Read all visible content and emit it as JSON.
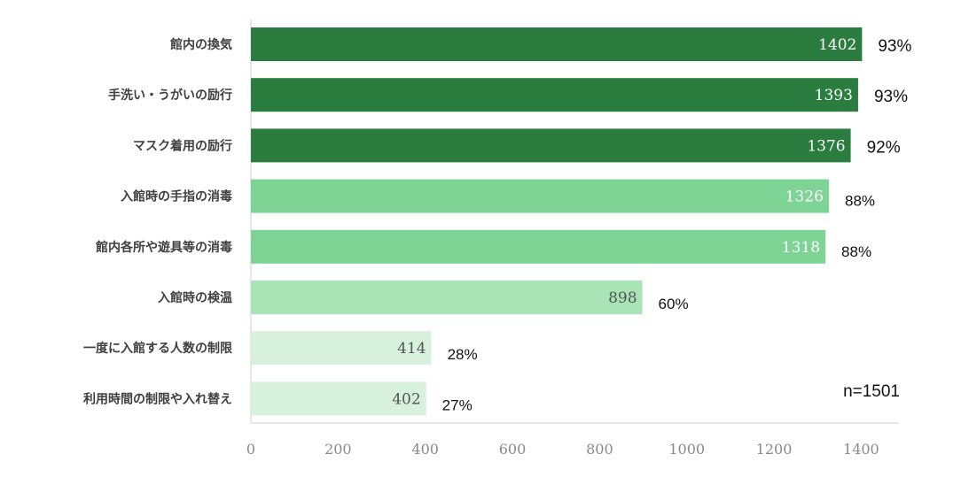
{
  "chart_data": {
    "type": "bar",
    "orientation": "horizontal",
    "categories": [
      "館内の換気",
      "手洗い・うがいの励行",
      "マスク着用の励行",
      "入館時の手指の消毒",
      "館内各所や遊具等の消毒",
      "入館時の検温",
      "一度に入館する人数の制限",
      "利用時間の制限や入れ替え"
    ],
    "values": [
      1402,
      1393,
      1376,
      1326,
      1318,
      898,
      414,
      402
    ],
    "percent_labels": [
      "93%",
      "93%",
      "92%",
      "88%",
      "88%",
      "60%",
      "28%",
      "27%"
    ],
    "bar_colors": [
      "#2a7d3e",
      "#2a7d3e",
      "#2a7d3e",
      "#7dd494",
      "#7dd494",
      "#a8e4b6",
      "#d7f1dd",
      "#d7f1dd"
    ],
    "value_label_colors": [
      "#ffffff",
      "#ffffff",
      "#ffffff",
      "#ffffff",
      "#ffffff",
      "#555555",
      "#555555",
      "#555555"
    ],
    "xlim": [
      0,
      1500
    ],
    "xticks": [
      0,
      200,
      400,
      600,
      800,
      1000,
      1200,
      1400
    ],
    "annotation": "n=1501",
    "grid": false
  }
}
